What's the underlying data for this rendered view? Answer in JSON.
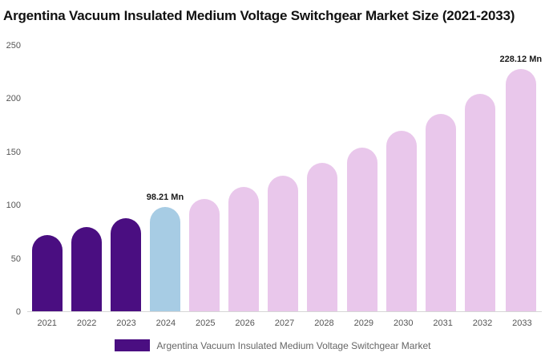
{
  "chart_data": {
    "type": "bar",
    "title": "Argentina Vacuum Insulated Medium Voltage Switchgear Market Size (2021-2033)",
    "categories": [
      "2021",
      "2022",
      "2023",
      "2024",
      "2025",
      "2026",
      "2027",
      "2028",
      "2029",
      "2030",
      "2031",
      "2032",
      "2033"
    ],
    "values": [
      72,
      79,
      88,
      98.21,
      106,
      117,
      128,
      140,
      154,
      170,
      186,
      205,
      228.12
    ],
    "bar_colors": [
      "#4a0e81",
      "#4a0e81",
      "#4a0e81",
      "#a7cce4",
      "#e9c7eb",
      "#e9c7eb",
      "#e9c7eb",
      "#e9c7eb",
      "#e9c7eb",
      "#e9c7eb",
      "#e9c7eb",
      "#e9c7eb",
      "#e9c7eb"
    ],
    "point_labels": {
      "2024": "98.21 Mn",
      "2033": "228.12 Mn"
    },
    "colors": {
      "historical": "#4a0e81",
      "current_year": "#a7cce4",
      "forecast": "#e9c7eb",
      "legend_swatch": "#4a0e81"
    },
    "xlabel": "",
    "ylabel": "",
    "ylim": [
      0,
      250
    ],
    "yticks": [
      0,
      50,
      100,
      150,
      200,
      250
    ],
    "grid": false,
    "legend": "Argentina Vacuum Insulated Medium Voltage Switchgear Market",
    "legend_position": "bottom"
  }
}
